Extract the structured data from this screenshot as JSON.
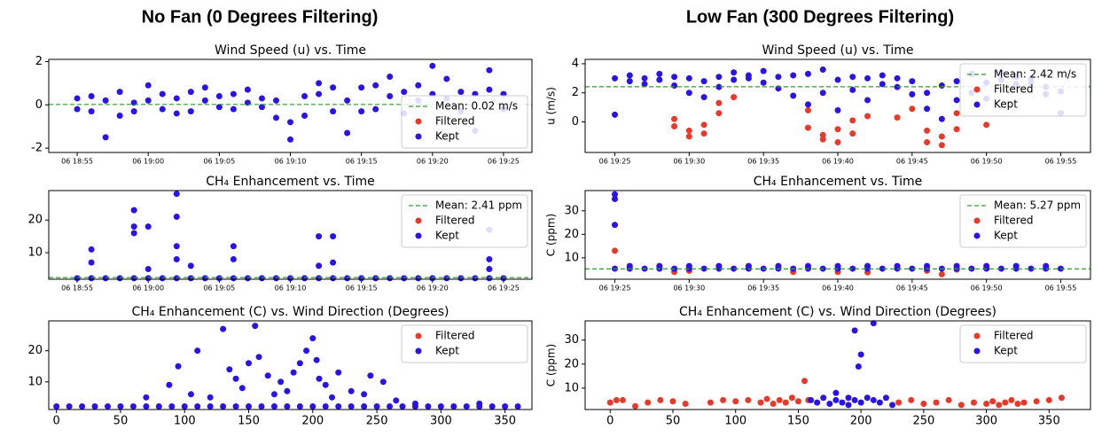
{
  "panel_titles": [
    "No Fan (0 Degrees Filtering)",
    "Low Fan (300 Degrees Filtering)"
  ],
  "chart_data": [
    {
      "type": "scatter",
      "title": "Wind Speed (u) vs. Time",
      "legend": "lower right",
      "xlim": [
        "06 18:53",
        "06 19:27"
      ],
      "xticks": [
        "06 18:55",
        "06 19:00",
        "06 19:05",
        "06 19:10",
        "06 19:15",
        "06 19:20",
        "06 19:25"
      ],
      "ylim": [
        -2.2,
        2.1
      ],
      "yticks": [
        -2,
        0,
        2
      ],
      "mean": {
        "value": 0.02,
        "label": "Mean: 0.02 m/s",
        "color": "#2ca02c"
      },
      "series": [
        {
          "name": "Filtered",
          "color": "#e8392a",
          "x": [],
          "values": []
        },
        {
          "name": "Kept",
          "color": "#2a13e6",
          "x": [
            "06 18:55",
            "06 18:55",
            "06 18:56",
            "06 18:56",
            "06 18:57",
            "06 18:57",
            "06 18:58",
            "06 18:58",
            "06 18:59",
            "06 18:59",
            "06 19:00",
            "06 19:00",
            "06 19:01",
            "06 19:01",
            "06 19:02",
            "06 19:02",
            "06 19:03",
            "06 19:03",
            "06 19:04",
            "06 19:04",
            "06 19:05",
            "06 19:05",
            "06 19:06",
            "06 19:06",
            "06 19:07",
            "06 19:07",
            "06 19:08",
            "06 19:08",
            "06 19:09",
            "06 19:09",
            "06 19:10",
            "06 19:10",
            "06 19:11",
            "06 19:11",
            "06 19:12",
            "06 19:12",
            "06 19:13",
            "06 19:13",
            "06 19:14",
            "06 19:14",
            "06 19:15",
            "06 19:15",
            "06 19:16",
            "06 19:16",
            "06 19:17",
            "06 19:17",
            "06 19:18",
            "06 19:18",
            "06 19:19",
            "06 19:19",
            "06 19:20",
            "06 19:20",
            "06 19:21",
            "06 19:21",
            "06 19:22",
            "06 19:22",
            "06 19:23",
            "06 19:23",
            "06 19:24",
            "06 19:24",
            "06 19:25",
            "06 19:25"
          ],
          "values": [
            0.3,
            -0.2,
            0.4,
            -0.3,
            -1.5,
            0.2,
            -0.5,
            0.6,
            0.1,
            -0.3,
            0.9,
            0.2,
            0.5,
            -0.2,
            0.3,
            -0.4,
            -0.3,
            0.6,
            0.2,
            0.8,
            0.4,
            -0.1,
            -0.2,
            0.5,
            0.7,
            0.1,
            -0.1,
            0.3,
            0.2,
            -0.6,
            -1.6,
            -0.8,
            -0.5,
            0.4,
            0.5,
            1.0,
            -0.3,
            0.8,
            -1.3,
            0.2,
            0.8,
            -0.3,
            -0.2,
            0.9,
            1.3,
            0.4,
            -0.4,
            0.6,
            0.9,
            0.2,
            1.8,
            0.5,
            1.2,
            0.3,
            -0.3,
            0.6,
            -1.2,
            0.5,
            1.6,
            0.7,
            0.5,
            -0.2
          ]
        }
      ]
    },
    {
      "type": "scatter",
      "title": "CH₄ Enhancement vs. Time",
      "legend": "upper right",
      "xlim": [
        "06 18:53",
        "06 19:27"
      ],
      "xticks": [
        "06 18:55",
        "06 19:00",
        "06 19:05",
        "06 19:10",
        "06 19:15",
        "06 19:20",
        "06 19:25"
      ],
      "ylim": [
        1.9,
        29
      ],
      "yticks": [
        10,
        20
      ],
      "mean": {
        "value": 2.41,
        "label": "Mean: 2.41 ppm",
        "color": "#2ca02c"
      },
      "series": [
        {
          "name": "Filtered",
          "color": "#e8392a",
          "x": [],
          "values": []
        },
        {
          "name": "Kept",
          "color": "#2a13e6",
          "x": [
            "06 18:55",
            "06 18:56",
            "06 18:57",
            "06 18:58",
            "06 18:59",
            "06 19:00",
            "06 19:01",
            "06 19:02",
            "06 19:03",
            "06 19:04",
            "06 19:05",
            "06 19:06",
            "06 19:07",
            "06 19:08",
            "06 19:09",
            "06 19:10",
            "06 19:11",
            "06 19:12",
            "06 19:13",
            "06 19:14",
            "06 19:15",
            "06 19:16",
            "06 19:17",
            "06 19:18",
            "06 19:19",
            "06 19:20",
            "06 19:21",
            "06 19:22",
            "06 19:23",
            "06 19:24",
            "06 19:25",
            "06 18:56",
            "06 18:56",
            "06 18:59",
            "06 18:59",
            "06 18:59",
            "06 19:00",
            "06 19:00",
            "06 19:02",
            "06 19:02",
            "06 19:02",
            "06 19:02",
            "06 19:03",
            "06 19:06",
            "06 19:06",
            "06 19:12",
            "06 19:12",
            "06 19:13",
            "06 19:13",
            "06 19:24",
            "06 19:24",
            "06 19:24"
          ],
          "values": [
            2.2,
            2.2,
            2.2,
            2.2,
            2.2,
            2.2,
            2.2,
            2.2,
            2.2,
            2.2,
            2.2,
            2.2,
            2.2,
            2.2,
            2.2,
            2.2,
            2.2,
            2.2,
            2.2,
            2.2,
            2.2,
            2.2,
            2.2,
            2.2,
            2.2,
            2.2,
            2.2,
            2.2,
            2.2,
            2.2,
            2.2,
            11,
            7,
            23,
            16,
            18,
            18,
            5,
            28,
            21,
            12,
            8,
            6,
            12,
            8,
            15,
            6,
            15,
            7,
            17,
            8,
            5
          ]
        }
      ]
    },
    {
      "type": "scatter",
      "title": "CH₄ Enhancement (C) vs. Wind Direction (Degrees)",
      "legend": "upper right",
      "xlim": [
        -6,
        371
      ],
      "xticks": [
        0,
        50,
        100,
        150,
        200,
        250,
        300,
        350
      ],
      "ylim": [
        1.1,
        29.6
      ],
      "yticks": [
        10,
        20
      ],
      "series": [
        {
          "name": "Filtered",
          "color": "#e8392a",
          "x": [],
          "values": []
        },
        {
          "name": "Kept",
          "color": "#2a13e6",
          "x": [
            0,
            10,
            20,
            30,
            40,
            50,
            60,
            70,
            80,
            90,
            100,
            110,
            120,
            130,
            140,
            150,
            160,
            170,
            180,
            190,
            200,
            210,
            220,
            230,
            240,
            250,
            260,
            270,
            280,
            290,
            300,
            310,
            320,
            330,
            340,
            350,
            360,
            70,
            88,
            95,
            105,
            110,
            120,
            130,
            135,
            140,
            145,
            150,
            155,
            158,
            165,
            170,
            175,
            180,
            185,
            190,
            195,
            200,
            203,
            205,
            210,
            215,
            220,
            230,
            240,
            245,
            255,
            265,
            280,
            330
          ],
          "values": [
            2.1,
            2.1,
            2.1,
            2.1,
            2.1,
            2.1,
            2.1,
            2.1,
            2.1,
            2.1,
            2.1,
            2.1,
            2.1,
            2.1,
            2.1,
            2.1,
            2.1,
            2.1,
            2.1,
            2.1,
            2.1,
            2.1,
            2.1,
            2.1,
            2.1,
            2.1,
            2.1,
            2.1,
            2.1,
            2.1,
            2.1,
            2.1,
            2.1,
            2.1,
            2.1,
            2.1,
            2.1,
            5,
            9,
            15,
            6,
            20,
            5,
            27,
            14,
            11,
            8,
            16,
            28,
            18,
            12,
            6,
            10,
            7,
            13,
            16,
            20,
            24,
            17,
            11,
            9,
            5,
            13,
            7,
            6,
            12,
            10,
            4,
            3,
            3
          ]
        }
      ]
    },
    {
      "type": "scatter",
      "title": "Wind Speed (u) vs. Time",
      "ylabel": "u (m/s)",
      "legend": "upper right",
      "xlim": [
        "06 19:23",
        "06 19:57"
      ],
      "xticks": [
        "06 19:25",
        "06 19:30",
        "06 19:35",
        "06 19:40",
        "06 19:45",
        "06 19:50",
        "06 19:55"
      ],
      "ylim": [
        -2.1,
        4.3
      ],
      "yticks": [
        0,
        2,
        4
      ],
      "mean": {
        "value": 2.42,
        "label": "Mean: 2.42 m/s",
        "color": "#2ca02c"
      },
      "series": [
        {
          "name": "Filtered",
          "color": "#e8392a",
          "x": [
            "06 19:29",
            "06 19:29",
            "06 19:30",
            "06 19:30",
            "06 19:31",
            "06 19:31",
            "06 19:32",
            "06 19:32",
            "06 19:33",
            "06 19:38",
            "06 19:38",
            "06 19:39",
            "06 19:39",
            "06 19:40",
            "06 19:40",
            "06 19:41",
            "06 19:41",
            "06 19:42",
            "06 19:44",
            "06 19:45",
            "06 19:46",
            "06 19:46",
            "06 19:47",
            "06 19:47",
            "06 19:48",
            "06 19:48",
            "06 19:50"
          ],
          "values": [
            -0.3,
            0.2,
            -0.6,
            -1.0,
            -0.2,
            -0.8,
            1.3,
            0.6,
            1.7,
            0.8,
            -0.4,
            -0.9,
            -1.2,
            -0.5,
            -1.4,
            0.1,
            -0.8,
            0.4,
            0.3,
            0.9,
            -0.6,
            -1.4,
            -1.6,
            -1.0,
            -0.5,
            0.6,
            -0.2
          ]
        },
        {
          "name": "Kept",
          "color": "#2a13e6",
          "x": [
            "06 19:25",
            "06 19:25",
            "06 19:26",
            "06 19:26",
            "06 19:27",
            "06 19:27",
            "06 19:28",
            "06 19:28",
            "06 19:29",
            "06 19:29",
            "06 19:30",
            "06 19:30",
            "06 19:31",
            "06 19:31",
            "06 19:32",
            "06 19:32",
            "06 19:33",
            "06 19:33",
            "06 19:34",
            "06 19:34",
            "06 19:35",
            "06 19:35",
            "06 19:36",
            "06 19:36",
            "06 19:37",
            "06 19:37",
            "06 19:38",
            "06 19:38",
            "06 19:39",
            "06 19:39",
            "06 19:40",
            "06 19:40",
            "06 19:41",
            "06 19:41",
            "06 19:42",
            "06 19:42",
            "06 19:43",
            "06 19:43",
            "06 19:44",
            "06 19:44",
            "06 19:45",
            "06 19:45",
            "06 19:46",
            "06 19:46",
            "06 19:47",
            "06 19:47",
            "06 19:48",
            "06 19:48",
            "06 19:49",
            "06 19:49",
            "06 19:50",
            "06 19:50",
            "06 19:51",
            "06 19:51",
            "06 19:52",
            "06 19:52",
            "06 19:53",
            "06 19:53",
            "06 19:54",
            "06 19:54",
            "06 19:55",
            "06 19:55"
          ],
          "values": [
            0.5,
            3.0,
            2.8,
            3.2,
            3.0,
            2.6,
            3.3,
            2.9,
            2.5,
            3.1,
            2.0,
            3.0,
            1.7,
            2.8,
            3.1,
            2.4,
            3.4,
            2.9,
            3.2,
            3.0,
            3.5,
            2.7,
            3.1,
            2.3,
            1.8,
            3.2,
            3.3,
            1.2,
            3.6,
            2.0,
            0.8,
            2.9,
            2.2,
            3.1,
            3.0,
            1.5,
            2.6,
            3.2,
            3.0,
            2.4,
            2.8,
            1.9,
            2.0,
            0.9,
            0.2,
            2.5,
            1.5,
            2.8,
            3.3,
            2.0,
            1.6,
            2.7,
            3.4,
            2.9,
            3.1,
            2.6,
            2.7,
            3.0,
            2.4,
            1.9,
            0.6,
            2.1
          ]
        }
      ]
    },
    {
      "type": "scatter",
      "title": "CH₄ Enhancement vs. Time",
      "ylabel": "C (ppm)",
      "legend": "upper right",
      "xlim": [
        "06 19:23",
        "06 19:57"
      ],
      "xticks": [
        "06 19:25",
        "06 19:30",
        "06 19:35",
        "06 19:40",
        "06 19:45",
        "06 19:50",
        "06 19:55"
      ],
      "ylim": [
        0.9,
        38.6
      ],
      "yticks": [
        10,
        20,
        30
      ],
      "mean": {
        "value": 5.27,
        "label": "Mean: 5.27 ppm",
        "color": "#2ca02c"
      },
      "series": [
        {
          "name": "Filtered",
          "color": "#e8392a",
          "x": [
            "06 19:25",
            "06 19:29",
            "06 19:30",
            "06 19:37",
            "06 19:40",
            "06 19:42",
            "06 19:46",
            "06 19:47",
            "06 19:48"
          ],
          "values": [
            13,
            4,
            4.5,
            4,
            4,
            3.8,
            4.5,
            3,
            5
          ]
        },
        {
          "name": "Kept",
          "color": "#2a13e6",
          "x": [
            "06 19:25",
            "06 19:26",
            "06 19:27",
            "06 19:28",
            "06 19:29",
            "06 19:30",
            "06 19:31",
            "06 19:32",
            "06 19:33",
            "06 19:34",
            "06 19:35",
            "06 19:36",
            "06 19:37",
            "06 19:38",
            "06 19:39",
            "06 19:40",
            "06 19:41",
            "06 19:42",
            "06 19:43",
            "06 19:44",
            "06 19:45",
            "06 19:46",
            "06 19:47",
            "06 19:48",
            "06 19:49",
            "06 19:50",
            "06 19:51",
            "06 19:52",
            "06 19:53",
            "06 19:54",
            "06 19:55",
            "06 19:26",
            "06 19:28",
            "06 19:30",
            "06 19:32",
            "06 19:34",
            "06 19:36",
            "06 19:38",
            "06 19:40",
            "06 19:42",
            "06 19:44",
            "06 19:46",
            "06 19:48",
            "06 19:50",
            "06 19:52",
            "06 19:54",
            "06 19:25",
            "06 19:25",
            "06 19:25"
          ],
          "values": [
            5.4,
            5.4,
            5.4,
            5.4,
            5.4,
            5.4,
            5.4,
            5.4,
            5.4,
            5.4,
            5.4,
            5.4,
            5.4,
            5.4,
            5.4,
            5.4,
            5.4,
            5.4,
            5.4,
            5.4,
            5.4,
            5.4,
            5.4,
            5.4,
            5.4,
            5.4,
            5.4,
            5.4,
            5.4,
            5.4,
            5.4,
            6.5,
            6.5,
            6.5,
            6.5,
            6.5,
            6.5,
            6.5,
            6.5,
            6.5,
            6.5,
            6.5,
            6.5,
            6.5,
            6.5,
            6.5,
            37,
            35,
            24
          ]
        }
      ]
    },
    {
      "type": "scatter",
      "title": "CH₄ Enhancement (C) vs. Wind Direction (Degrees)",
      "ylabel": "C (ppm)",
      "legend": "upper right",
      "xlim": [
        -20,
        383
      ],
      "xticks": [
        0,
        50,
        100,
        150,
        200,
        250,
        300,
        350
      ],
      "ylim": [
        1.1,
        38
      ],
      "yticks": [
        10,
        20,
        30
      ],
      "series": [
        {
          "name": "Filtered",
          "color": "#e8392a",
          "x": [
            0,
            5,
            10,
            20,
            30,
            40,
            50,
            60,
            80,
            90,
            100,
            110,
            120,
            125,
            130,
            135,
            140,
            145,
            150,
            155,
            158,
            230,
            240,
            250,
            260,
            270,
            280,
            290,
            300,
            305,
            310,
            315,
            320,
            325,
            330,
            340,
            350,
            360
          ],
          "values": [
            4,
            5,
            5,
            2.5,
            4,
            5,
            4.5,
            3.5,
            4,
            5,
            4.5,
            5,
            4,
            5.5,
            3.5,
            5,
            4,
            6,
            4.5,
            13,
            5,
            4,
            5,
            3.5,
            4,
            5,
            3,
            4,
            3.5,
            4.5,
            3,
            4,
            5,
            3.5,
            4,
            4.5,
            5,
            6
          ]
        },
        {
          "name": "Kept",
          "color": "#2a13e6",
          "x": [
            160,
            165,
            170,
            175,
            180,
            180,
            185,
            190,
            190,
            195,
            195,
            198,
            200,
            200,
            205,
            210,
            210,
            215,
            220,
            225
          ],
          "values": [
            5,
            4,
            6,
            3.5,
            8,
            5,
            4,
            6,
            3,
            34,
            5,
            19,
            24,
            4,
            6,
            37,
            5,
            4,
            6,
            3
          ]
        }
      ]
    }
  ]
}
